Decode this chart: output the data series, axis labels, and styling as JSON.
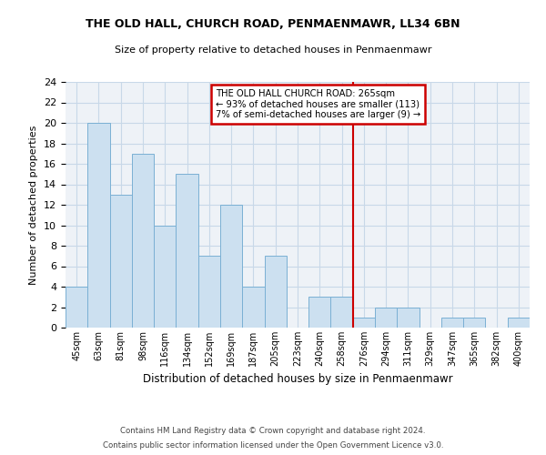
{
  "title1": "THE OLD HALL, CHURCH ROAD, PENMAENMAWR, LL34 6BN",
  "title2": "Size of property relative to detached houses in Penmaenmawr",
  "xlabel": "Distribution of detached houses by size in Penmaenmawr",
  "ylabel": "Number of detached properties",
  "bin_labels": [
    "45sqm",
    "63sqm",
    "81sqm",
    "98sqm",
    "116sqm",
    "134sqm",
    "152sqm",
    "169sqm",
    "187sqm",
    "205sqm",
    "223sqm",
    "240sqm",
    "258sqm",
    "276sqm",
    "294sqm",
    "311sqm",
    "329sqm",
    "347sqm",
    "365sqm",
    "382sqm",
    "400sqm"
  ],
  "counts": [
    4,
    20,
    13,
    17,
    10,
    15,
    7,
    12,
    4,
    7,
    0,
    3,
    3,
    1,
    2,
    2,
    0,
    1,
    1,
    0,
    1
  ],
  "bar_color": "#cce0f0",
  "bar_edge_color": "#7ab0d4",
  "vline_x": 12.5,
  "annotation_text": "THE OLD HALL CHURCH ROAD: 265sqm\n← 93% of detached houses are smaller (113)\n7% of semi-detached houses are larger (9) →",
  "annotation_box_color": "#ffffff",
  "annotation_border_color": "#cc0000",
  "vline_color": "#cc0000",
  "grid_color": "#c8d8e8",
  "background_color": "#eef2f7",
  "footer1": "Contains HM Land Registry data © Crown copyright and database right 2024.",
  "footer2": "Contains public sector information licensed under the Open Government Licence v3.0.",
  "ylim": [
    0,
    24
  ],
  "yticks": [
    0,
    2,
    4,
    6,
    8,
    10,
    12,
    14,
    16,
    18,
    20,
    22,
    24
  ]
}
